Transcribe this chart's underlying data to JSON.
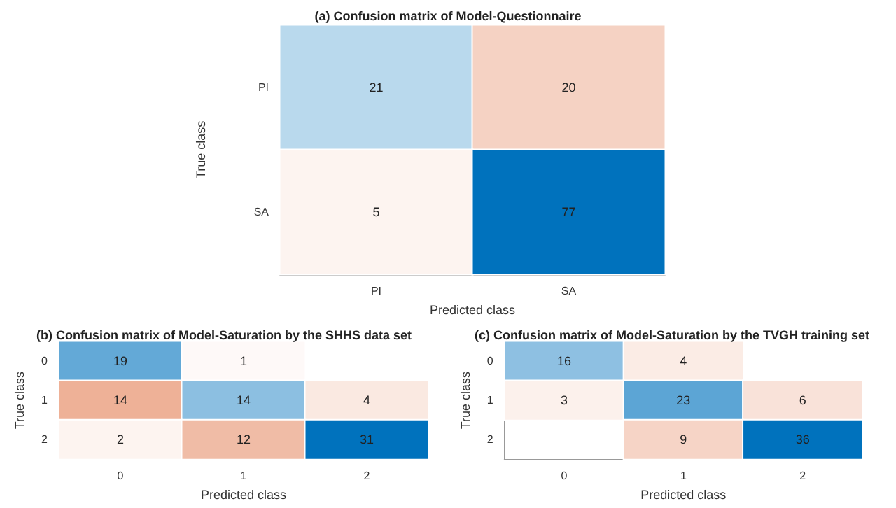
{
  "chart_data": [
    {
      "type": "heatmap",
      "title": "(a) Confusion matrix of Model-Questionnaire",
      "xlabel": "Predicted class",
      "ylabel": "True class",
      "categories": [
        "PI",
        "SA"
      ],
      "y_categories": [
        "PI",
        "SA"
      ],
      "cells": [
        [
          21,
          20
        ],
        [
          5,
          77
        ]
      ],
      "data_labels": true
    },
    {
      "type": "heatmap",
      "title": "(b) Confusion matrix of Model-Saturation by the SHHS data set",
      "xlabel": "Predicted class",
      "ylabel": "True class",
      "categories": [
        "0",
        "1",
        "2"
      ],
      "y_categories": [
        "0",
        "1",
        "2"
      ],
      "cells": [
        [
          19,
          1,
          null
        ],
        [
          14,
          14,
          4
        ],
        [
          2,
          12,
          31
        ]
      ],
      "data_labels": true
    },
    {
      "type": "heatmap",
      "title": "(c) Confusion matrix of Model-Saturation by the TVGH training set",
      "xlabel": "Predicted class",
      "ylabel": "True class",
      "categories": [
        "0",
        "1",
        "2"
      ],
      "y_categories": [
        "0",
        "1",
        "2"
      ],
      "cells": [
        [
          16,
          4,
          null
        ],
        [
          3,
          23,
          6
        ],
        [
          null,
          9,
          36
        ]
      ],
      "data_labels": true
    }
  ]
}
